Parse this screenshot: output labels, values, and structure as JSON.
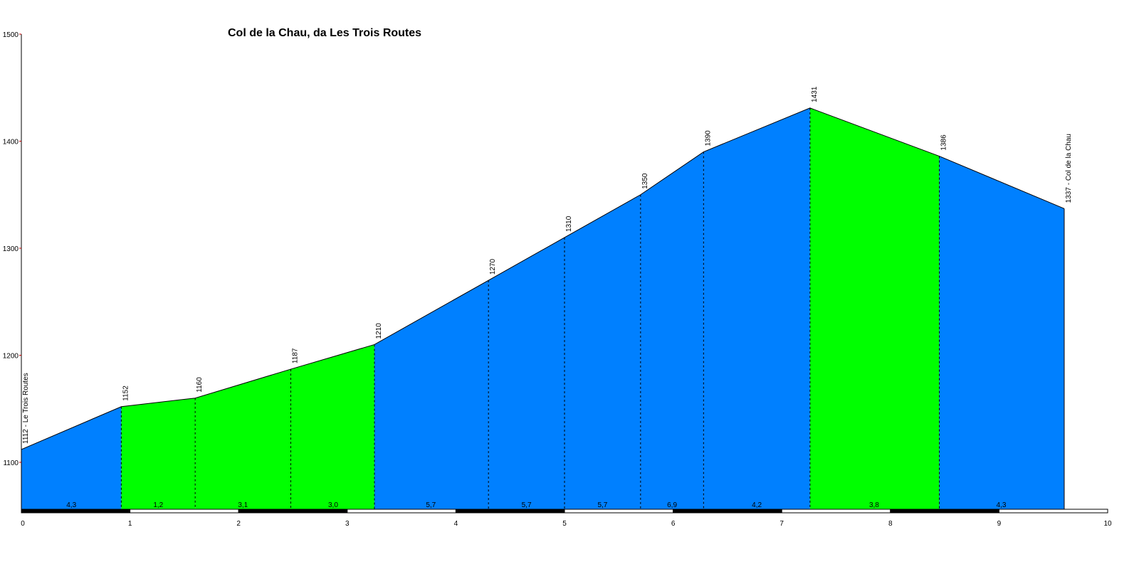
{
  "chart_data": {
    "type": "area",
    "title": "Col de la Chau, da Les Trois Routes",
    "xlabel": "",
    "ylabel": "",
    "xlim": [
      0,
      10
    ],
    "ylim": [
      1050,
      1500
    ],
    "x_ticks": [
      "0",
      "1",
      "2",
      "3",
      "4",
      "5",
      "6",
      "7",
      "8",
      "9",
      "10"
    ],
    "y_ticks": [
      "1100",
      "1200",
      "1300",
      "1400",
      "1500"
    ],
    "colors": {
      "blue": "#0080ff",
      "green": "#00ff00",
      "axis_tick": "#cc0000"
    },
    "points": [
      {
        "x": 0.0,
        "y": 1112
      },
      {
        "x": 0.92,
        "y": 1152
      },
      {
        "x": 1.6,
        "y": 1160
      },
      {
        "x": 2.48,
        "y": 1187
      },
      {
        "x": 3.25,
        "y": 1210
      },
      {
        "x": 4.3,
        "y": 1270
      },
      {
        "x": 5.0,
        "y": 1310
      },
      {
        "x": 5.7,
        "y": 1350
      },
      {
        "x": 6.28,
        "y": 1390
      },
      {
        "x": 7.26,
        "y": 1431
      },
      {
        "x": 8.45,
        "y": 1386
      },
      {
        "x": 9.6,
        "y": 1337
      }
    ],
    "point_labels": [
      "1112 - Le Trois Routes",
      "1152",
      "1160",
      "1187",
      "1210",
      "1270",
      "1310",
      "1350",
      "1390",
      "1431",
      "1386",
      "1337 - Col de la Chau"
    ],
    "segment_colors": [
      "blue",
      "green",
      "green",
      "green",
      "blue",
      "blue",
      "blue",
      "blue",
      "blue",
      "green",
      "blue"
    ],
    "gradient_labels": [
      {
        "x": 0.46,
        "label": "4,3"
      },
      {
        "x": 1.26,
        "label": "1,2"
      },
      {
        "x": 2.04,
        "label": "3,1"
      },
      {
        "x": 2.87,
        "label": "3,0"
      },
      {
        "x": 3.77,
        "label": "5,7"
      },
      {
        "x": 4.65,
        "label": "5,7"
      },
      {
        "x": 5.35,
        "label": "5,7"
      },
      {
        "x": 5.99,
        "label": "6,9"
      },
      {
        "x": 6.77,
        "label": "4,2"
      },
      {
        "x": 7.85,
        "label": "3,8"
      },
      {
        "x": 9.02,
        "label": "4,3"
      }
    ]
  }
}
